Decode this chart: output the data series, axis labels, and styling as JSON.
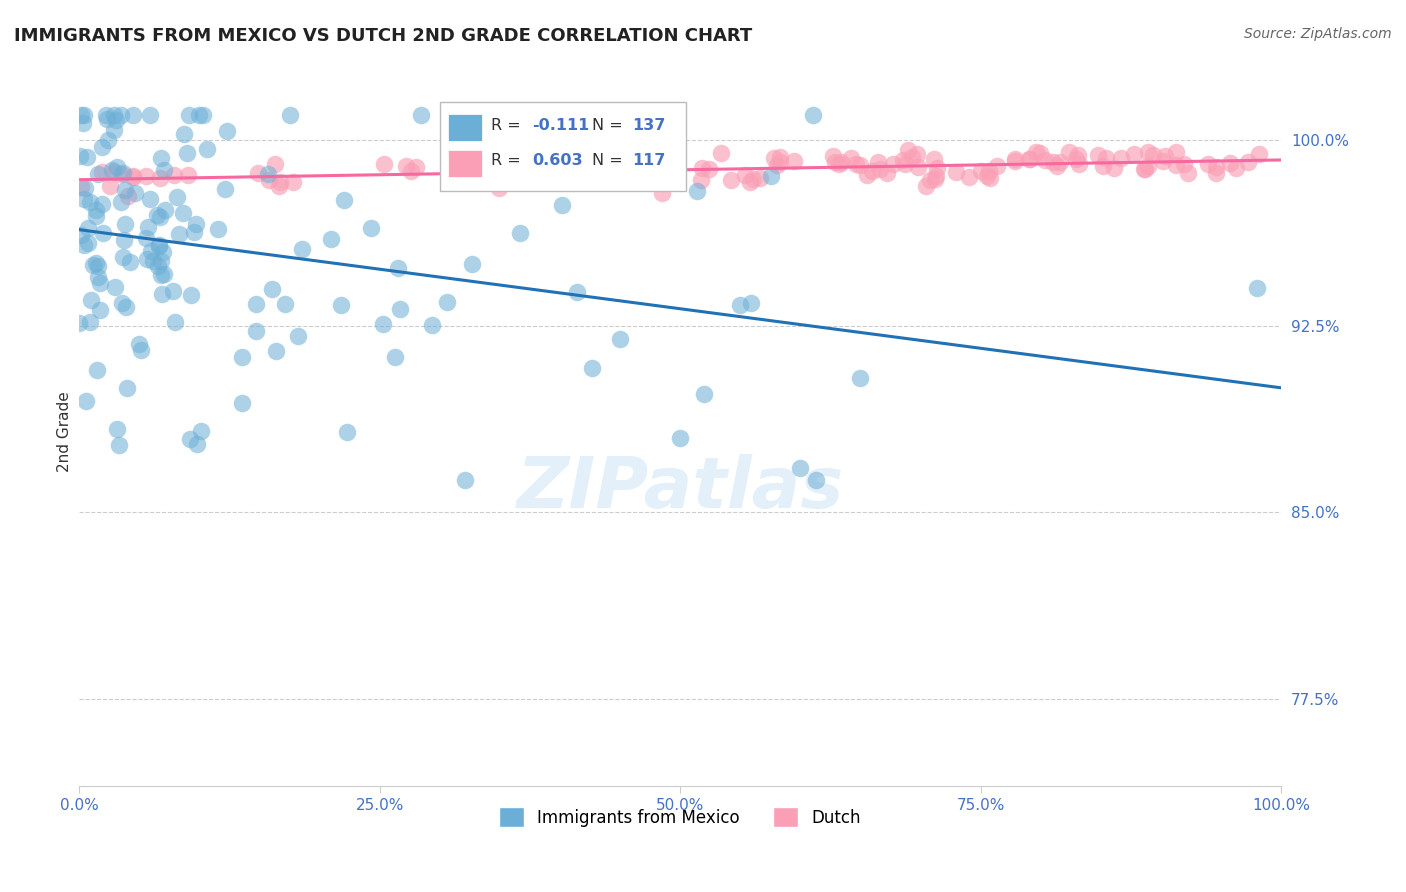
{
  "title": "IMMIGRANTS FROM MEXICO VS DUTCH 2ND GRADE CORRELATION CHART",
  "source": "Source: ZipAtlas.com",
  "ylabel": "2nd Grade",
  "yaxis_labels": [
    "100.0%",
    "92.5%",
    "85.0%",
    "77.5%"
  ],
  "yaxis_values": [
    1.0,
    0.925,
    0.85,
    0.775
  ],
  "legend_blue_r": "R = -0.111",
  "legend_blue_n": "N = 137",
  "legend_pink_r": "R = 0.603",
  "legend_pink_n": "N = 117",
  "legend_label_blue": "Immigrants from Mexico",
  "legend_label_pink": "Dutch",
  "blue_color": "#6baed6",
  "pink_color": "#fa9fb5",
  "blue_line_color": "#2171b5",
  "pink_line_color": "#f768a1",
  "watermark": "ZIPatlas",
  "n_blue": 137,
  "n_pink": 117
}
